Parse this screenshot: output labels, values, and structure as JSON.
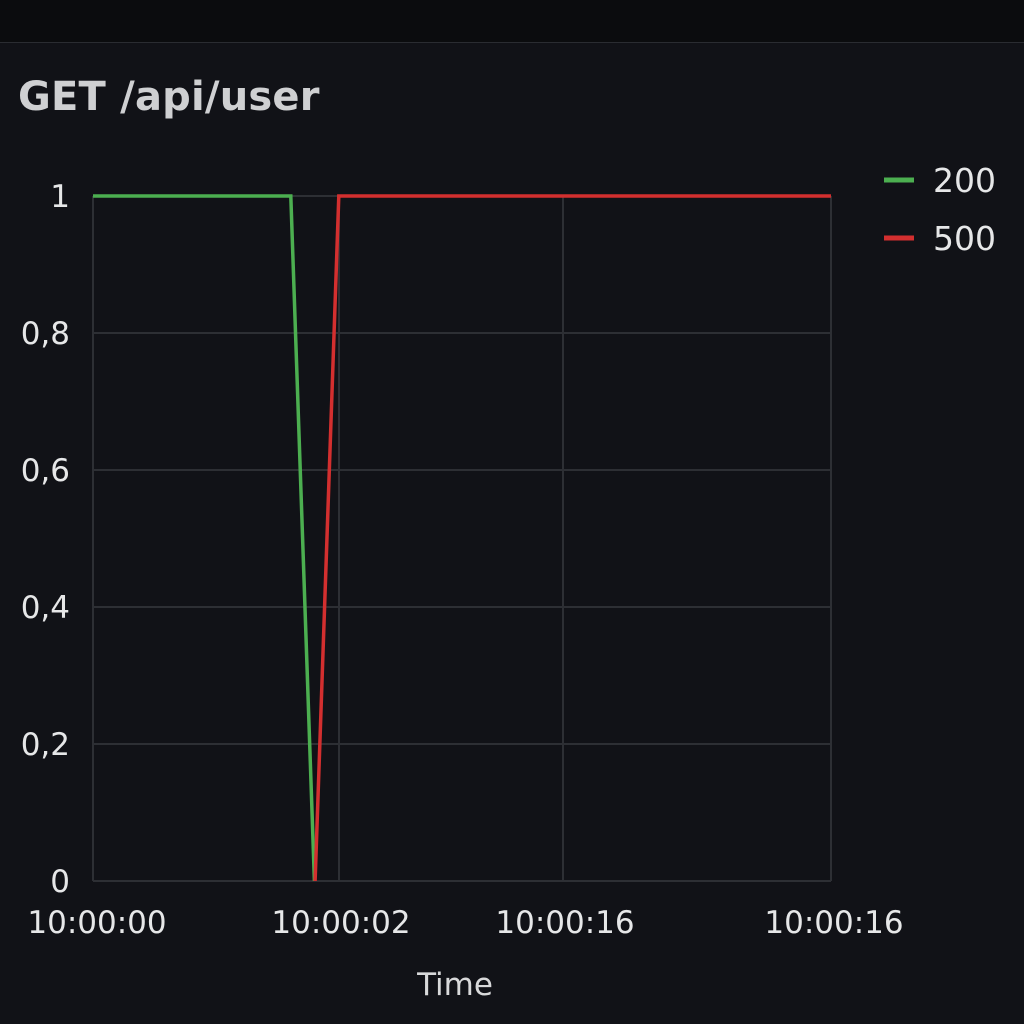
{
  "panel": {
    "title": "GET /api/user"
  },
  "chart_data": {
    "type": "line",
    "title": "GET /api/user",
    "xlabel": "Time",
    "ylabel": "",
    "x_tick_labels": [
      "10:00:00",
      "10:00:02",
      "10:00:16",
      "10:00:16"
    ],
    "y_tick_labels": [
      "0",
      "0,2",
      "0,4",
      "0,6",
      "0,8",
      "1"
    ],
    "ylim": [
      0,
      1
    ],
    "y_ticks": [
      0,
      0.2,
      0.4,
      0.6,
      0.8,
      1
    ],
    "grid": true,
    "legend_position": "top-right",
    "series": [
      {
        "name": "200",
        "color": "#4caf50",
        "points": [
          {
            "x": 0,
            "y": 1
          },
          {
            "x": 0.268,
            "y": 1
          },
          {
            "x": 0.3,
            "y": 0
          }
        ]
      },
      {
        "name": "500",
        "color": "#d32f2f",
        "points": [
          {
            "x": 0.301,
            "y": 0
          },
          {
            "x": 0.333,
            "y": 1
          },
          {
            "x": 1,
            "y": 1
          }
        ]
      }
    ]
  }
}
